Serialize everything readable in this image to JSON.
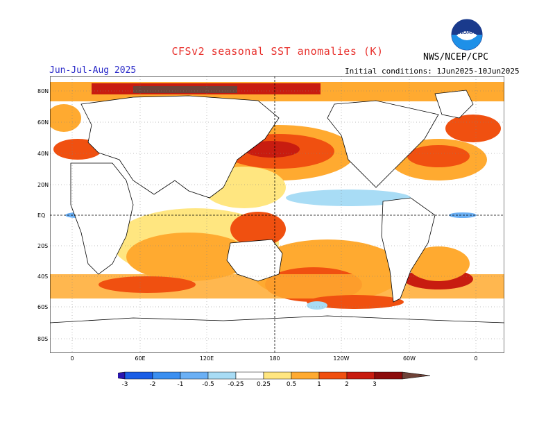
{
  "header": {
    "title": "CFSv2 seasonal SST anomalies (K)",
    "season": "Jun-Jul-Aug 2025",
    "initial_conditions": "Initial conditions: 1Jun2025-10Jun2025",
    "agency": "NWS/NCEP/CPC",
    "logo_text": "NOAA"
  },
  "map": {
    "lat_labels": [
      "80N",
      "60N",
      "40N",
      "20N",
      "EQ",
      "20S",
      "40S",
      "60S",
      "80S"
    ],
    "lon_labels": [
      "0",
      "60E",
      "120E",
      "180",
      "120W",
      "60W",
      "0"
    ]
  },
  "colorbar": {
    "levels": [
      "-3",
      "-2",
      "-1",
      "-0.5",
      "-0.25",
      "0.25",
      "0.5",
      "1",
      "2",
      "3"
    ],
    "colors": [
      "#2a16b0",
      "#1a5ee6",
      "#3b8ff0",
      "#6bb0f5",
      "#a8dcf5",
      "#ffffff",
      "#ffe680",
      "#ffaa30",
      "#f05010",
      "#c81c10",
      "#8c0c0c",
      "#6e4238"
    ]
  }
}
